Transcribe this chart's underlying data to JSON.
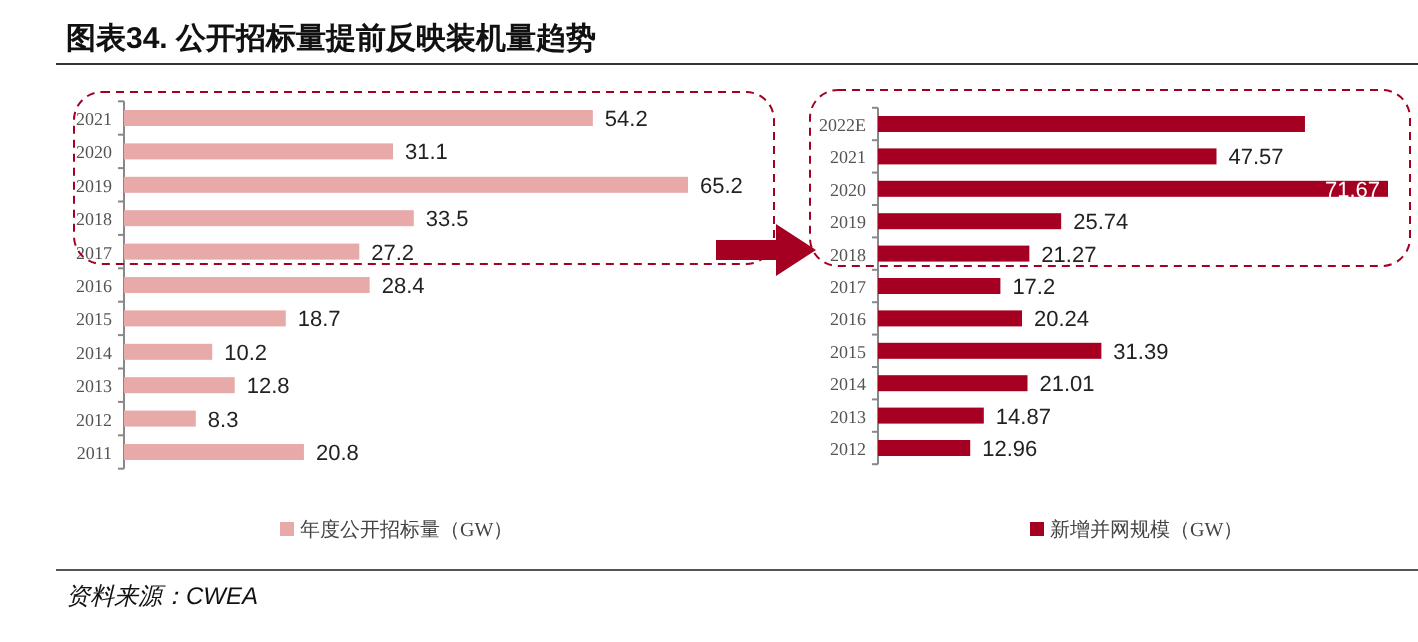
{
  "chart_data": [
    {
      "type": "bar",
      "orientation": "horizontal",
      "title": "图表34. 公开招标量提前反映装机量趋势",
      "categories": [
        "2021",
        "2020",
        "2019",
        "2018",
        "2017",
        "2016",
        "2015",
        "2014",
        "2013",
        "2012",
        "2011"
      ],
      "series": [
        {
          "name": "年度公开招标量（GW）",
          "color": "#e8a9a9",
          "values": [
            54.2,
            31.1,
            65.2,
            33.5,
            27.2,
            28.4,
            18.7,
            10.2,
            12.8,
            8.3,
            20.8
          ]
        }
      ],
      "data_labels": true,
      "legend": "bottom",
      "annotations": [
        "资料来源：CWEA"
      ]
    },
    {
      "type": "bar",
      "orientation": "horizontal",
      "categories": [
        "2022E",
        "2021",
        "2020",
        "2019",
        "2018",
        "2017",
        "2016",
        "2015",
        "2014",
        "2013",
        "2012"
      ],
      "series": [
        {
          "name": "新增并网规模（GW）",
          "color": "#a50021",
          "values": [
            60,
            47.57,
            71.67,
            25.74,
            21.27,
            17.2,
            20.24,
            31.39,
            21.01,
            14.87,
            12.96
          ],
          "value_labels": [
            null,
            "47.57",
            "71.67",
            "25.74",
            "21.27",
            "17.2",
            "20.24",
            "31.39",
            "21.01",
            "14.87",
            "12.96"
          ]
        }
      ],
      "legend": "bottom"
    }
  ]
}
